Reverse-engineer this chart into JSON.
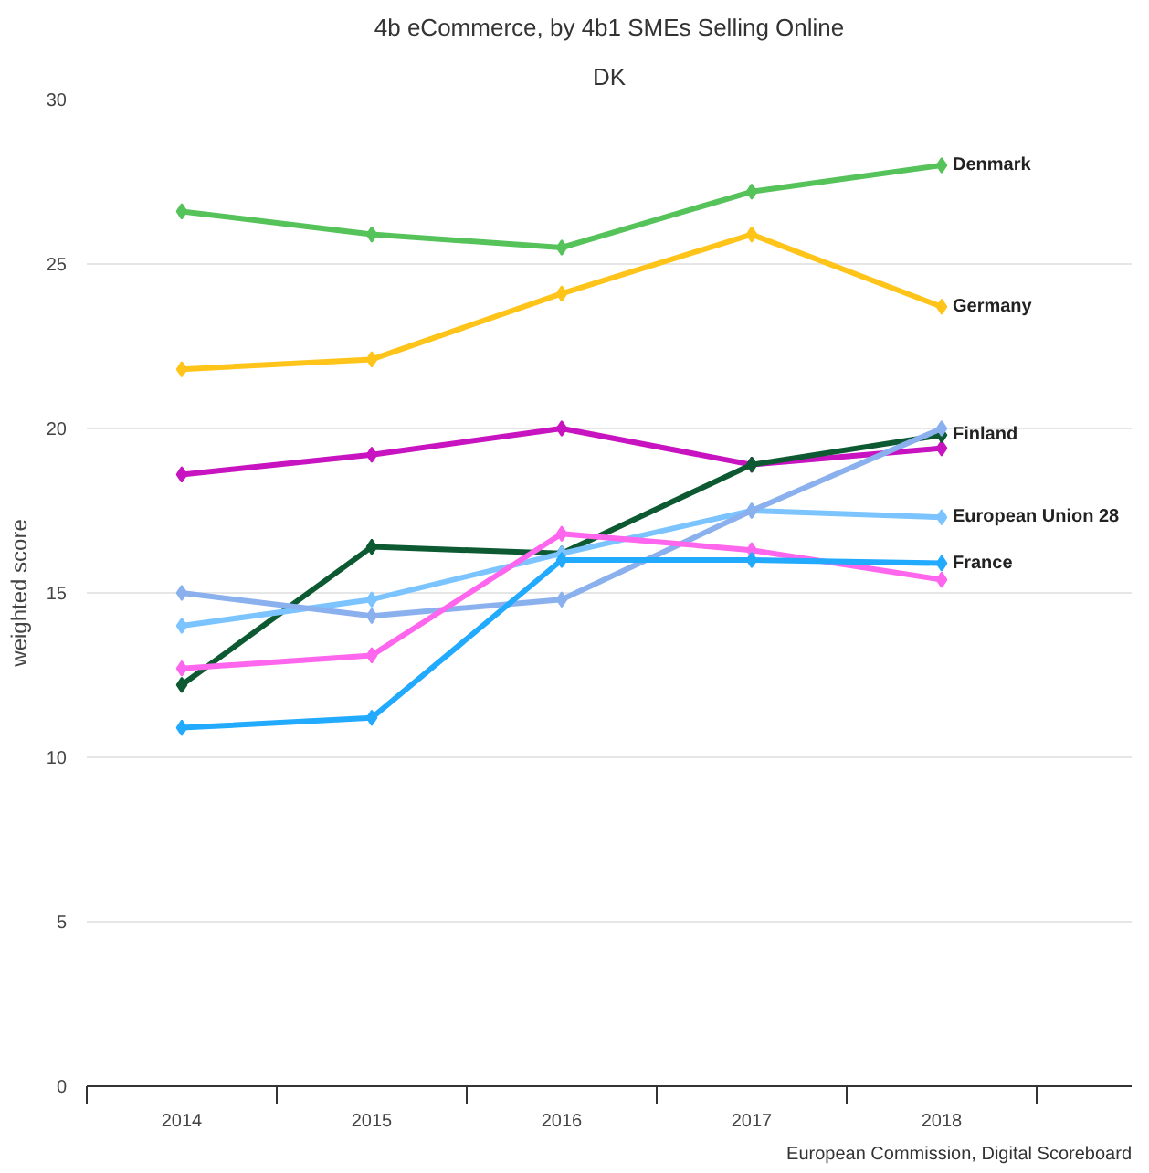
{
  "chart_data": {
    "type": "line",
    "title": "4b eCommerce, by 4b1 SMEs Selling Online",
    "subtitle": "DK",
    "ylabel": "weighted score",
    "categories": [
      "2014",
      "2015",
      "2016",
      "2017",
      "2018"
    ],
    "ylim": [
      0,
      30
    ],
    "yticks": [
      0,
      5,
      10,
      15,
      20,
      25,
      30
    ],
    "grid": "y",
    "marker": "diamond",
    "series": [
      {
        "name": "Denmark",
        "color": "#55c35a",
        "values": [
          26.6,
          25.9,
          25.5,
          27.2,
          28.0
        ]
      },
      {
        "name": "Germany",
        "color": "#ffc41a",
        "values": [
          21.8,
          22.1,
          24.1,
          25.9,
          23.7
        ]
      },
      {
        "color": "#c814c0",
        "values": [
          18.6,
          19.2,
          20.0,
          18.9,
          19.4
        ]
      },
      {
        "name": "Finland",
        "color": "#0d5a32",
        "values": [
          12.2,
          16.4,
          16.2,
          18.9,
          19.8
        ]
      },
      {
        "name": "European Union 28",
        "color": "#7cc4ff",
        "values": [
          14.0,
          14.8,
          16.2,
          17.5,
          17.3
        ]
      },
      {
        "color": "#8ab0ee",
        "values": [
          15.0,
          14.3,
          14.8,
          17.5,
          20.0
        ]
      },
      {
        "color": "#ff66ee",
        "values": [
          12.7,
          13.1,
          16.8,
          16.3,
          15.4
        ]
      },
      {
        "name": "France",
        "color": "#22aaff",
        "values": [
          10.9,
          11.2,
          16.0,
          16.0,
          15.9
        ]
      }
    ],
    "annotations": [
      "European Commission, Digital Scoreboard"
    ]
  }
}
